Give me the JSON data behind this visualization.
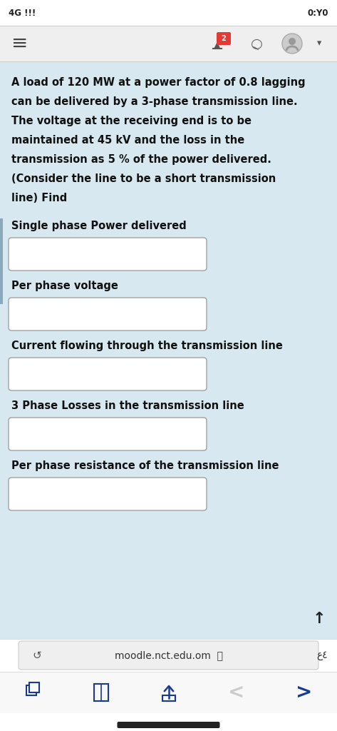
{
  "status_bar_left": "4G !!!",
  "status_bar_right": "0:Y0",
  "bg_color_status": "#ffffff",
  "bg_color_nav": "#efefef",
  "bg_color_content": "#d8e8f0",
  "bg_color_white": "#ffffff",
  "nav_url": "moodle.nct.edu.om",
  "problem_text_lines": [
    "A load of 120 MW at a power factor of 0.8 lagging",
    "can be delivered by a 3-phase transmission line.",
    "The voltage at the receiving end is to be",
    "maintained at 45 kV and the loss in the",
    "transmission as 5 % of the power delivered.",
    "(Consider the line to be a short transmission",
    "line) Find"
  ],
  "questions": [
    "Single phase Power delivered",
    "Per phase voltage",
    "Current flowing through the transmission line",
    "3 Phase Losses in the transmission line",
    "Per phase resistance of the transmission line"
  ],
  "text_color": "#111111",
  "box_border_color": "#999999",
  "box_fill_color": "#ffffff",
  "left_bar_color": "#8aaabb",
  "font_size_status": 8.5,
  "font_size_problem": 10.5,
  "font_size_question": 10.5,
  "font_size_nav": 10
}
